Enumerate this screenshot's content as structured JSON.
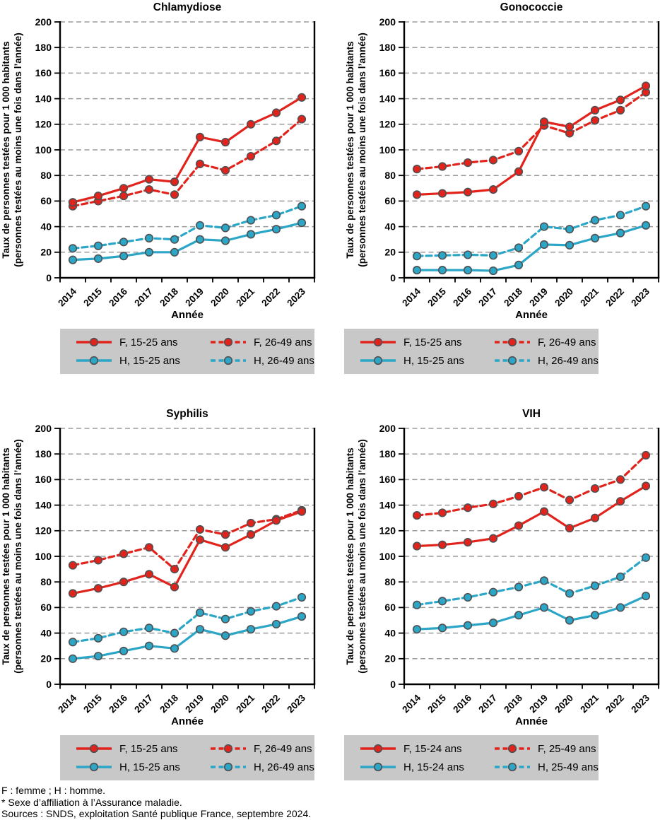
{
  "colors": {
    "female": "#e2231c",
    "male": "#2ba6c6",
    "marker_outline": "#4f5052",
    "grid": "#9b9b9b",
    "axis": "#000000",
    "legend_bg": "#c8c8c8"
  },
  "axis": {
    "ylabel_line1": "Taux de personnes testées pour 1 000 habitants",
    "ylabel_line2": "(personnes testées au moins une fois dans l’année)",
    "xlabel": "Année",
    "ylim": [
      0,
      200
    ],
    "ytick_step": 20,
    "grid": "dashed horizontal"
  },
  "chart_data": [
    {
      "type": "line",
      "title": "Chlamydiose",
      "categories": [
        "2014",
        "2015",
        "2016",
        "2017",
        "2018",
        "2019",
        "2020",
        "2021",
        "2022",
        "2023"
      ],
      "series": [
        {
          "name": "F, 15-25 ans",
          "colorKey": "female",
          "dashed": false,
          "values": [
            59,
            64,
            70,
            77,
            75,
            110,
            106,
            120,
            129,
            141
          ]
        },
        {
          "name": "F, 26-49 ans",
          "colorKey": "female",
          "dashed": true,
          "values": [
            56,
            60,
            64,
            69,
            65,
            89,
            84,
            95,
            107,
            124
          ]
        },
        {
          "name": "H, 15-25 ans",
          "colorKey": "male",
          "dashed": false,
          "values": [
            14,
            15,
            17,
            20,
            20,
            30,
            29,
            34,
            38,
            43
          ]
        },
        {
          "name": "H, 26-49 ans",
          "colorKey": "male",
          "dashed": true,
          "values": [
            23,
            25,
            28,
            31,
            30,
            41,
            39,
            45,
            49,
            56
          ]
        }
      ]
    },
    {
      "type": "line",
      "title": "Gonococcie",
      "categories": [
        "2014",
        "2015",
        "2016",
        "2017",
        "2018",
        "2019",
        "2020",
        "2021",
        "2022",
        "2023"
      ],
      "series": [
        {
          "name": "F, 15-25 ans",
          "colorKey": "female",
          "dashed": false,
          "values": [
            65,
            66,
            67,
            69,
            83,
            122,
            118,
            131,
            139,
            150
          ]
        },
        {
          "name": "F, 26-49 ans",
          "colorKey": "female",
          "dashed": true,
          "values": [
            85,
            87,
            90,
            92,
            99,
            119,
            113,
            123,
            131,
            145
          ]
        },
        {
          "name": "H, 15-25 ans",
          "colorKey": "male",
          "dashed": false,
          "values": [
            6,
            6,
            6,
            5.5,
            10,
            26,
            25.5,
            31,
            35,
            41
          ]
        },
        {
          "name": "H, 26-49 ans",
          "colorKey": "male",
          "dashed": true,
          "values": [
            17,
            17.5,
            18,
            17.5,
            23.5,
            40,
            38,
            45,
            49,
            56
          ]
        }
      ]
    },
    {
      "type": "line",
      "title": "Syphilis",
      "categories": [
        "2014",
        "2015",
        "2016",
        "2017",
        "2018",
        "2019",
        "2020",
        "2021",
        "2022",
        "2023"
      ],
      "series": [
        {
          "name": "F, 15-25 ans",
          "colorKey": "female",
          "dashed": false,
          "values": [
            71,
            75,
            80,
            86,
            76,
            113,
            107,
            117,
            128,
            135
          ]
        },
        {
          "name": "F, 26-49 ans",
          "colorKey": "female",
          "dashed": true,
          "values": [
            93,
            97,
            102,
            107,
            90,
            121,
            117,
            126,
            129,
            136
          ]
        },
        {
          "name": "H, 15-25 ans",
          "colorKey": "male",
          "dashed": false,
          "values": [
            20,
            22,
            26,
            30,
            28,
            43,
            38,
            43,
            47,
            53
          ]
        },
        {
          "name": "H, 26-49 ans",
          "colorKey": "male",
          "dashed": true,
          "values": [
            33,
            36,
            41,
            44,
            40,
            56,
            51,
            57,
            61,
            68
          ]
        }
      ]
    },
    {
      "type": "line",
      "title": "VIH",
      "categories": [
        "2014",
        "2015",
        "2016",
        "2017",
        "2018",
        "2019",
        "2020",
        "2021",
        "2022",
        "2023"
      ],
      "series": [
        {
          "name": "F, 15-24 ans",
          "colorKey": "female",
          "dashed": false,
          "values": [
            108,
            109,
            111,
            114,
            124,
            135,
            122,
            130,
            143,
            155
          ]
        },
        {
          "name": "F, 25-49 ans",
          "colorKey": "female",
          "dashed": true,
          "values": [
            132,
            134,
            138,
            141,
            147,
            154,
            144,
            153,
            160,
            179
          ]
        },
        {
          "name": "H, 15-24 ans",
          "colorKey": "male",
          "dashed": false,
          "values": [
            43,
            44,
            46,
            48,
            54,
            60,
            50,
            54,
            60,
            69
          ]
        },
        {
          "name": "H, 25-49 ans",
          "colorKey": "male",
          "dashed": true,
          "values": [
            62,
            65,
            68,
            72,
            76,
            81,
            71,
            77,
            84,
            99
          ]
        }
      ]
    }
  ],
  "figure": {
    "footer_lines": [
      "F : femme ; H : homme.",
      "* Sexe d’affiliation à l’Assurance maladie.",
      "Sources : SNDS, exploitation Santé publique France, septembre 2024."
    ]
  }
}
